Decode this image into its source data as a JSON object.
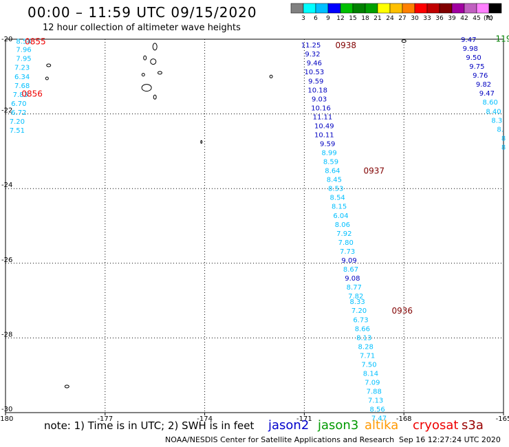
{
  "header": {
    "title": "00:00 – 11:59 UTC 09/15/2020",
    "subtitle": "12 hour collection of altimeter wave heights"
  },
  "color_scale": {
    "ticks": [
      "3",
      "6",
      "9",
      "12",
      "15",
      "18",
      "21",
      "24",
      "27",
      "30",
      "33",
      "36",
      "39",
      "42",
      "45",
      "70"
    ],
    "unit": "(ft)",
    "colors": [
      "#808080",
      "#00ffff",
      "#00bfff",
      "#0000ff",
      "#00c000",
      "#008000",
      "#00a000",
      "#ffff00",
      "#ffc000",
      "#ff8000",
      "#ff0000",
      "#c00000",
      "#800000",
      "#a000a0",
      "#c060c0",
      "#ff80ff",
      "#000000"
    ]
  },
  "footer": {
    "note": "note: 1) Time is in UTC; 2) SWH is in feet",
    "credit": "NOAA/NESDIS Center for Satellite Applications and Research",
    "timestamp": "Sep 16 12:27:24 UTC 2020"
  },
  "satellites": [
    {
      "name": "jason2",
      "color": "#0000cc"
    },
    {
      "name": "jason3",
      "color": "#009900"
    },
    {
      "name": "altika",
      "color": "#ff9900"
    },
    {
      "name": "cryosat",
      "color": "#ee0000"
    },
    {
      "name": "s3a",
      "color": "#990000"
    }
  ],
  "chart_data": {
    "type": "scatter",
    "title": "12 hour collection of altimeter wave heights",
    "xlim": [
      -180,
      -165
    ],
    "ylim": [
      -30,
      -20
    ],
    "x_ticks": [
      "-180",
      "-177",
      "-174",
      "-171",
      "-168",
      "-165"
    ],
    "y_ticks": [
      "-20",
      "-22",
      "-24",
      "-26",
      "-28",
      "-30"
    ],
    "grid": true,
    "series": [
      {
        "name": "track-left",
        "points": [
          {
            "lon": -179.45,
            "lat": -20.05,
            "v": "8.54",
            "c": "#00bfff"
          },
          {
            "lon": -179.45,
            "lat": -20.27,
            "v": "7.96",
            "c": "#00bfff"
          },
          {
            "lon": -179.45,
            "lat": -20.51,
            "v": "7.95",
            "c": "#00bfff"
          },
          {
            "lon": -179.5,
            "lat": -20.75,
            "v": "7.23",
            "c": "#00bfff"
          },
          {
            "lon": -179.5,
            "lat": -20.99,
            "v": "6.34",
            "c": "#00bfff"
          },
          {
            "lon": -179.5,
            "lat": -21.23,
            "v": "7.68",
            "c": "#00bfff"
          },
          {
            "lon": -179.55,
            "lat": -21.47,
            "v": "7.83",
            "c": "#00bfff"
          },
          {
            "lon": -179.6,
            "lat": -21.71,
            "v": "6.70",
            "c": "#00bfff"
          },
          {
            "lon": -179.6,
            "lat": -21.95,
            "v": "6.72",
            "c": "#00bfff"
          },
          {
            "lon": -179.65,
            "lat": -22.19,
            "v": "7.20",
            "c": "#00bfff"
          },
          {
            "lon": -179.65,
            "lat": -22.43,
            "v": "7.51",
            "c": "#00bfff"
          }
        ]
      },
      {
        "name": "track-center",
        "points": [
          {
            "lon": -170.8,
            "lat": -20.15,
            "v": "11.25",
            "c": "#0000c0"
          },
          {
            "lon": -170.75,
            "lat": -20.39,
            "v": "9.32",
            "c": "#0000c0"
          },
          {
            "lon": -170.7,
            "lat": -20.63,
            "v": "9.46",
            "c": "#0000c0"
          },
          {
            "lon": -170.7,
            "lat": -20.87,
            "v": "10.53",
            "c": "#0000c0"
          },
          {
            "lon": -170.65,
            "lat": -21.11,
            "v": "9.59",
            "c": "#0000c0"
          },
          {
            "lon": -170.6,
            "lat": -21.35,
            "v": "10.18",
            "c": "#0000c0"
          },
          {
            "lon": -170.55,
            "lat": -21.59,
            "v": "9.03",
            "c": "#0000c0"
          },
          {
            "lon": -170.5,
            "lat": -21.83,
            "v": "10.16",
            "c": "#0000c0"
          },
          {
            "lon": -170.45,
            "lat": -22.07,
            "v": "11.11",
            "c": "#0000c0"
          },
          {
            "lon": -170.4,
            "lat": -22.31,
            "v": "10.49",
            "c": "#0000c0"
          },
          {
            "lon": -170.4,
            "lat": -22.55,
            "v": "10.11",
            "c": "#0000c0"
          },
          {
            "lon": -170.3,
            "lat": -22.79,
            "v": "9.59",
            "c": "#0000c0"
          },
          {
            "lon": -170.25,
            "lat": -23.03,
            "v": "8.99",
            "c": "#00bfff"
          },
          {
            "lon": -170.2,
            "lat": -23.27,
            "v": "8.59",
            "c": "#00bfff"
          },
          {
            "lon": -170.15,
            "lat": -23.51,
            "v": "8.64",
            "c": "#00bfff"
          },
          {
            "lon": -170.1,
            "lat": -23.75,
            "v": "8.45",
            "c": "#00bfff"
          },
          {
            "lon": -170.05,
            "lat": -23.99,
            "v": "8.53",
            "c": "#00bfff"
          },
          {
            "lon": -170.0,
            "lat": -24.23,
            "v": "8.54",
            "c": "#00bfff"
          },
          {
            "lon": -169.95,
            "lat": -24.47,
            "v": "8.15",
            "c": "#00bfff"
          },
          {
            "lon": -169.9,
            "lat": -24.71,
            "v": "6.04",
            "c": "#00bfff"
          },
          {
            "lon": -169.85,
            "lat": -24.95,
            "v": "8.06",
            "c": "#00bfff"
          },
          {
            "lon": -169.8,
            "lat": -25.19,
            "v": "7.92",
            "c": "#00bfff"
          },
          {
            "lon": -169.75,
            "lat": -25.43,
            "v": "7.80",
            "c": "#00bfff"
          },
          {
            "lon": -169.7,
            "lat": -25.67,
            "v": "7.73",
            "c": "#00bfff"
          },
          {
            "lon": -169.65,
            "lat": -25.91,
            "v": "9.09",
            "c": "#0000c0"
          },
          {
            "lon": -169.6,
            "lat": -26.15,
            "v": "8.67",
            "c": "#00bfff"
          },
          {
            "lon": -169.55,
            "lat": -26.39,
            "v": "9.08",
            "c": "#0000c0"
          },
          {
            "lon": -169.5,
            "lat": -26.63,
            "v": "8.77",
            "c": "#00bfff"
          },
          {
            "lon": -169.45,
            "lat": -26.87,
            "v": "7.82",
            "c": "#00bfff"
          },
          {
            "lon": -169.4,
            "lat": -27.02,
            "v": "8.33",
            "c": "#00bfff"
          },
          {
            "lon": -169.35,
            "lat": -27.26,
            "v": "7.20",
            "c": "#00bfff"
          },
          {
            "lon": -169.3,
            "lat": -27.5,
            "v": "6.73",
            "c": "#00bfff"
          },
          {
            "lon": -169.25,
            "lat": -27.74,
            "v": "8.66",
            "c": "#00bfff"
          },
          {
            "lon": -169.2,
            "lat": -27.98,
            "v": "8.13",
            "c": "#00bfff"
          },
          {
            "lon": -169.15,
            "lat": -28.22,
            "v": "8.28",
            "c": "#00bfff"
          },
          {
            "lon": -169.1,
            "lat": -28.46,
            "v": "7.71",
            "c": "#00bfff"
          },
          {
            "lon": -169.05,
            "lat": -28.7,
            "v": "7.50",
            "c": "#00bfff"
          },
          {
            "lon": -169.0,
            "lat": -28.94,
            "v": "8.14",
            "c": "#00bfff"
          },
          {
            "lon": -168.95,
            "lat": -29.18,
            "v": "7.09",
            "c": "#00bfff"
          },
          {
            "lon": -168.9,
            "lat": -29.42,
            "v": "7.88",
            "c": "#00bfff"
          },
          {
            "lon": -168.85,
            "lat": -29.66,
            "v": "7.13",
            "c": "#00bfff"
          },
          {
            "lon": -168.8,
            "lat": -29.9,
            "v": "8.56",
            "c": "#00bfff"
          },
          {
            "lon": -168.75,
            "lat": -30.14,
            "v": "7.47",
            "c": "#00bfff"
          }
        ]
      },
      {
        "name": "track-right",
        "points": [
          {
            "lon": -166.05,
            "lat": -20.0,
            "v": "9.47",
            "c": "#0000c0"
          },
          {
            "lon": -166.0,
            "lat": -20.24,
            "v": "9.98",
            "c": "#0000c0"
          },
          {
            "lon": -165.9,
            "lat": -20.48,
            "v": "9.50",
            "c": "#0000c0"
          },
          {
            "lon": -165.8,
            "lat": -20.72,
            "v": "9.75",
            "c": "#0000c0"
          },
          {
            "lon": -165.7,
            "lat": -20.96,
            "v": "9.76",
            "c": "#0000c0"
          },
          {
            "lon": -165.6,
            "lat": -21.2,
            "v": "9.82",
            "c": "#0000c0"
          },
          {
            "lon": -165.5,
            "lat": -21.44,
            "v": "9.47",
            "c": "#0000c0"
          },
          {
            "lon": -165.4,
            "lat": -21.68,
            "v": "8.60",
            "c": "#00bfff"
          },
          {
            "lon": -165.3,
            "lat": -21.92,
            "v": "8.40",
            "c": "#00bfff"
          },
          {
            "lon": -165.2,
            "lat": -22.16,
            "v": "8.3",
            "c": "#00bfff"
          },
          {
            "lon": -165.1,
            "lat": -22.4,
            "v": "8.",
            "c": "#00bfff"
          },
          {
            "lon": -165.0,
            "lat": -22.64,
            "v": "8",
            "c": "#00bfff"
          },
          {
            "lon": -165.0,
            "lat": -22.88,
            "v": "8",
            "c": "#00bfff"
          }
        ]
      }
    ],
    "time_labels": [
      {
        "lon": -179.1,
        "lat": -20.05,
        "t": "0855",
        "c": "#ee0000"
      },
      {
        "lon": -179.2,
        "lat": -21.45,
        "t": "0856",
        "c": "#ee0000"
      },
      {
        "lon": -169.75,
        "lat": -20.15,
        "t": "0938",
        "c": "#800000"
      },
      {
        "lon": -168.9,
        "lat": -23.51,
        "t": "0937",
        "c": "#800000"
      },
      {
        "lon": -168.05,
        "lat": -27.26,
        "t": "0936",
        "c": "#800000"
      },
      {
        "lon": -165.0,
        "lat": -19.97,
        "t": "119",
        "c": "#008000"
      }
    ]
  }
}
